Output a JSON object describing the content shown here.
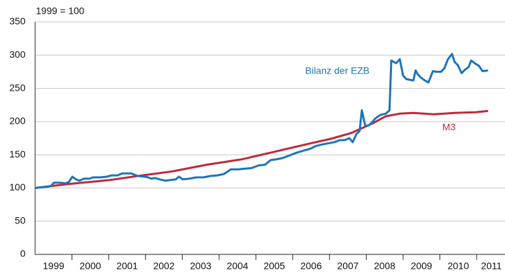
{
  "chart_data": {
    "type": "line",
    "subtitle": "1999 = 100",
    "xlim": [
      1999,
      2011.77
    ],
    "ylim": [
      0,
      350
    ],
    "yticks": [
      0,
      50,
      100,
      150,
      200,
      250,
      300,
      350
    ],
    "xticks": [
      {
        "value": 1999.5,
        "label": "1999"
      },
      {
        "value": 2000.5,
        "label": "2000"
      },
      {
        "value": 2001.5,
        "label": "2001"
      },
      {
        "value": 2002.5,
        "label": "2002"
      },
      {
        "value": 2003.5,
        "label": "2003"
      },
      {
        "value": 2004.5,
        "label": "2004"
      },
      {
        "value": 2005.5,
        "label": "2005"
      },
      {
        "value": 2006.5,
        "label": "2006"
      },
      {
        "value": 2007.5,
        "label": "2007"
      },
      {
        "value": 2008.5,
        "label": "2008"
      },
      {
        "value": 2009.5,
        "label": "2009"
      },
      {
        "value": 2010.5,
        "label": "2010"
      },
      {
        "value": 2011.4,
        "label": "2011"
      }
    ],
    "grid": true,
    "series": [
      {
        "name": "Bilanz der EZB",
        "color": "#1b75b9",
        "x": [
          1999.0,
          1999.36,
          1999.45,
          1999.51,
          1999.58,
          1999.69,
          1999.82,
          1999.92,
          2000.01,
          2000.11,
          2000.2,
          2000.33,
          2000.48,
          2000.57,
          2000.76,
          2000.95,
          2001.08,
          2001.23,
          2001.38,
          2001.51,
          2001.6,
          2001.7,
          2001.79,
          2001.98,
          2002.07,
          2002.16,
          2002.26,
          2002.39,
          2002.54,
          2002.69,
          2002.82,
          2002.91,
          2003.01,
          2003.19,
          2003.38,
          2003.57,
          2003.76,
          2003.95,
          2004.13,
          2004.32,
          2004.51,
          2004.69,
          2004.88,
          2005.07,
          2005.25,
          2005.4,
          2005.54,
          2005.72,
          2005.91,
          2006.1,
          2006.28,
          2006.47,
          2006.62,
          2006.75,
          2006.94,
          2007.13,
          2007.28,
          2007.41,
          2007.54,
          2007.63,
          2007.73,
          2007.82,
          2007.88,
          2007.97,
          2008.06,
          2008.16,
          2008.25,
          2008.38,
          2008.53,
          2008.63,
          2008.68,
          2008.81,
          2008.91,
          2009.0,
          2009.09,
          2009.28,
          2009.34,
          2009.39,
          2009.47,
          2009.56,
          2009.69,
          2009.81,
          2009.9,
          2010.03,
          2010.12,
          2010.22,
          2010.33,
          2010.4,
          2010.49,
          2010.59,
          2010.68,
          2010.78,
          2010.85,
          2010.97,
          2011.06,
          2011.16,
          2011.31
        ],
        "values": [
          100,
          102,
          104,
          108,
          108,
          108,
          107,
          109,
          117,
          113,
          111,
          114,
          114,
          116,
          116,
          117,
          119,
          119,
          122,
          122,
          122,
          120,
          118,
          117,
          116,
          114,
          115,
          113,
          111,
          112,
          113,
          117,
          113,
          114,
          116,
          116,
          118,
          119,
          121,
          128,
          128,
          129,
          130,
          134,
          135,
          142,
          143,
          145,
          149,
          153,
          156,
          159,
          163,
          165,
          167,
          169,
          172,
          172,
          175,
          169,
          181,
          186,
          217,
          194,
          194,
          199,
          205,
          210,
          212,
          217,
          292,
          288,
          294,
          269,
          264,
          262,
          277,
          272,
          267,
          263,
          259,
          276,
          275,
          275,
          280,
          294,
          302,
          290,
          285,
          273,
          278,
          282,
          292,
          287,
          284,
          276,
          277
        ]
      },
      {
        "name": "M3",
        "color": "#c0283c",
        "x": [
          1999.0,
          1999.92,
          2000.48,
          2001.04,
          2001.79,
          2002.73,
          2003.66,
          2004.6,
          2005.54,
          2006.47,
          2007.03,
          2007.6,
          2008.16,
          2008.53,
          2008.91,
          2009.28,
          2009.84,
          2010.4,
          2010.97,
          2011.31
        ],
        "values": [
          100,
          106,
          109,
          112,
          118,
          125,
          135,
          143,
          155,
          167,
          174,
          183,
          197,
          208,
          212,
          213,
          211,
          213,
          214,
          216
        ]
      }
    ]
  }
}
